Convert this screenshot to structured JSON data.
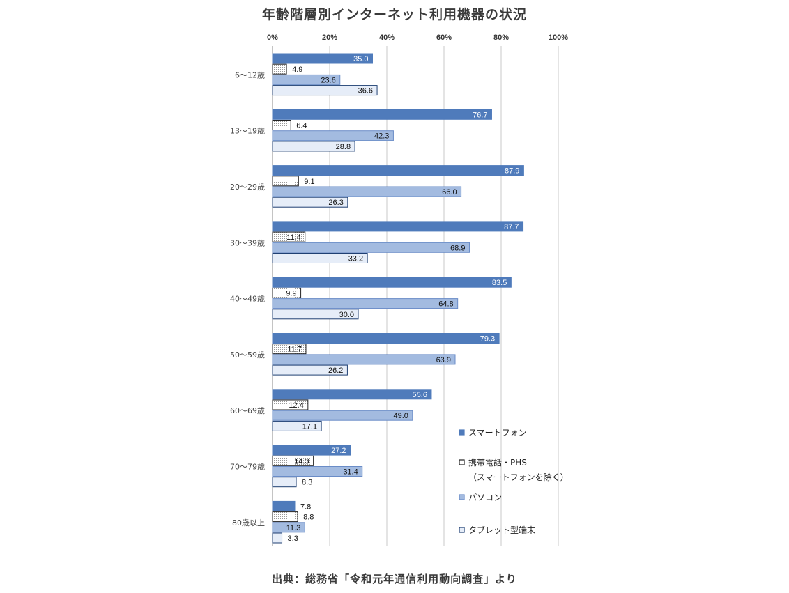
{
  "chart_data": {
    "type": "bar",
    "orientation": "horizontal",
    "title": "年齢階層別インターネット利用機器の状況",
    "source": "出典：総務省「令和元年通信利用動向調査」より",
    "xlim": [
      0,
      100
    ],
    "x_ticks": [
      "0%",
      "20%",
      "40%",
      "60%",
      "80%",
      "100%"
    ],
    "grid": true,
    "legend_position": "right-bottom",
    "categories": [
      "6～12歳",
      "13～19歳",
      "20～29歳",
      "30～39歳",
      "40～49歳",
      "50～59歳",
      "60～69歳",
      "70～79歳",
      "80歳以上"
    ],
    "series": [
      {
        "name": "スマートフォン",
        "fill": "#4f7bbb",
        "stroke": "#4f7bbb",
        "pattern": "solid",
        "label_color": "#ffffff",
        "values": [
          35.0,
          76.7,
          87.9,
          87.7,
          83.5,
          79.3,
          55.6,
          27.2,
          7.8
        ]
      },
      {
        "name": "携帯電話・PHS",
        "name_line2": "（スマートフォンを除く）",
        "fill": "#ffffff",
        "stroke": "#222222",
        "pattern": "dots",
        "label_color": "#111111",
        "values": [
          4.9,
          6.4,
          9.1,
          11.4,
          9.9,
          11.7,
          12.4,
          14.3,
          8.8
        ]
      },
      {
        "name": "パソコン",
        "fill": "#a3bbe0",
        "stroke": "#6a8cc7",
        "pattern": "solid",
        "label_color": "#111111",
        "values": [
          23.6,
          42.3,
          66.0,
          68.9,
          64.8,
          63.9,
          49.0,
          31.4,
          11.3
        ]
      },
      {
        "name": "タブレット型端末",
        "fill": "#e6edf8",
        "stroke": "#1f3f72",
        "pattern": "solid",
        "label_color": "#111111",
        "values": [
          36.6,
          28.8,
          26.3,
          33.2,
          30.0,
          26.2,
          17.1,
          8.3,
          3.3
        ]
      }
    ]
  }
}
